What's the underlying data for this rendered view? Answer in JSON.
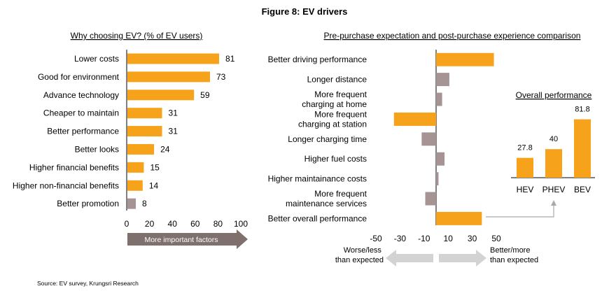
{
  "figure_title": "Figure 8: EV drivers",
  "source": "Source: EV survey, Krungsri Research",
  "colors": {
    "orange": "#F7A21B",
    "taupe": "#A69394",
    "arrow_dark": "#7F6F6D",
    "arrow_light": "#D3D3D3",
    "connector": "#A9A9A9"
  },
  "chart_data": [
    {
      "type": "bar",
      "orientation": "horizontal",
      "title": "Why choosing EV? (% of EV users)",
      "categories": [
        "Lower costs",
        "Good for environment",
        "Advance technology",
        "Cheaper to maintain",
        "Better performance",
        "Better looks",
        "Higher financial benefits",
        "Higher non-financial benefits",
        "Better promotion"
      ],
      "values": [
        81,
        73,
        59,
        31,
        31,
        24,
        15,
        14,
        8
      ],
      "value_labels": [
        "81",
        "73",
        "59",
        "31",
        "31",
        "24",
        "15",
        "14",
        "8"
      ],
      "xlim": [
        0,
        100
      ],
      "xticks": [
        0,
        20,
        40,
        60,
        80,
        100
      ],
      "xtick_labels": [
        "0",
        "20",
        "40",
        "60",
        "80",
        "100"
      ],
      "axis_arrow_label": "More important factors",
      "bar_colors": [
        "#F7A21B",
        "#F7A21B",
        "#F7A21B",
        "#F7A21B",
        "#F7A21B",
        "#F7A21B",
        "#F7A21B",
        "#F7A21B",
        "#A69394"
      ]
    },
    {
      "type": "bar",
      "orientation": "horizontal",
      "title": "Pre-purchase expectation and post-purchase experience comparison",
      "categories": [
        [
          "Better driving performance"
        ],
        [
          "Longer distance"
        ],
        [
          "More frequent",
          "charging at home"
        ],
        [
          "More frequent",
          "charging at station"
        ],
        [
          "Longer charging time"
        ],
        [
          "Higher fuel costs"
        ],
        [
          "Higher maintainance costs"
        ],
        [
          "More frequent",
          "maintenance services"
        ],
        [
          "Better overall performance"
        ]
      ],
      "values": [
        48,
        11,
        5,
        -35,
        -12,
        7,
        2,
        -9,
        38
      ],
      "xlim": [
        -50,
        50
      ],
      "xticks": [
        -50,
        -30,
        -10,
        10,
        30,
        50
      ],
      "xtick_labels": [
        "-50",
        "-30",
        "-10",
        "10",
        "30",
        "50"
      ],
      "left_arrow_label": [
        "Worse/less",
        "than expected"
      ],
      "right_arrow_label": [
        "Better/more",
        "than expected"
      ]
    },
    {
      "type": "bar",
      "title": "Overall performance",
      "categories": [
        "HEV",
        "PHEV",
        "BEV"
      ],
      "values": [
        27.8,
        40,
        81.8
      ],
      "value_labels": [
        "27.8",
        "40",
        "81.8"
      ],
      "ylim": [
        0,
        100
      ]
    }
  ]
}
